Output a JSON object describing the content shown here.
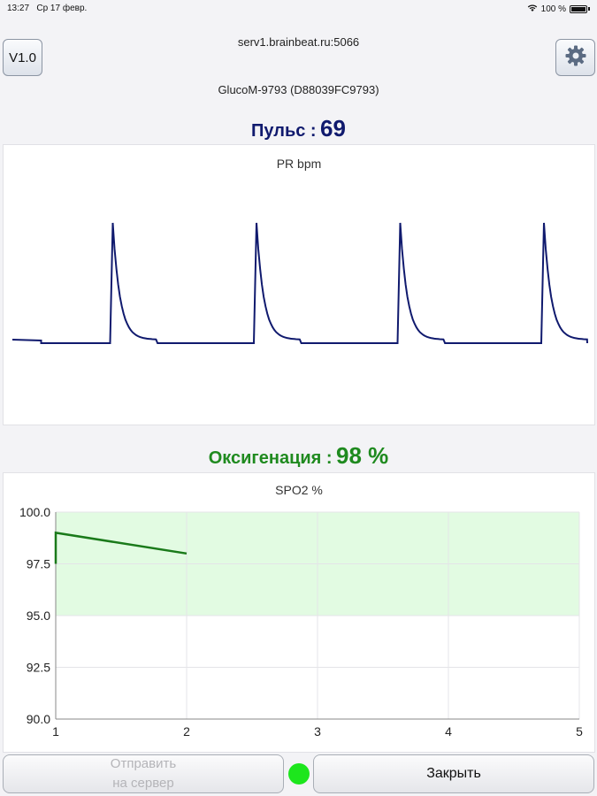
{
  "status_bar": {
    "time": "13:27",
    "date": "Ср 17 февр.",
    "battery": "100 %"
  },
  "header": {
    "version_label": "V1.0",
    "server": "serv1.brainbeat.ru:5066",
    "device": "GlucoM-9793 (D88039FC9793)"
  },
  "pulse": {
    "label": "Пульс :",
    "value": "69",
    "color": "#101a6e"
  },
  "oxygenation": {
    "label": "Оксигенация :",
    "value": "98 %",
    "color": "#1f8a1f"
  },
  "chart_data": [
    {
      "type": "line",
      "title": "PR bpm",
      "waveform": "pulse",
      "beats": 4,
      "line_color": "#101a6e"
    },
    {
      "type": "line",
      "title": "SPO2 %",
      "x": [
        1,
        2
      ],
      "y": [
        99,
        98
      ],
      "xlim": [
        1,
        5
      ],
      "ylim": [
        90,
        100
      ],
      "xticks": [
        "1",
        "2",
        "3",
        "4",
        "5"
      ],
      "yticks": [
        "90.0",
        "92.5",
        "95.0",
        "97.5",
        "100.0"
      ],
      "normal_band": [
        95,
        100
      ],
      "band_color": "#e2fbe2",
      "line_color": "#1a7a1a",
      "grid": true
    }
  ],
  "buttons": {
    "send_line1": "Отправить",
    "send_line2": "на сервер",
    "close": "Закрыть"
  },
  "connection_status_color": "#1de61d",
  "icons": {
    "settings": "gear-icon",
    "wifi": "wifi-icon",
    "battery": "battery-icon"
  }
}
